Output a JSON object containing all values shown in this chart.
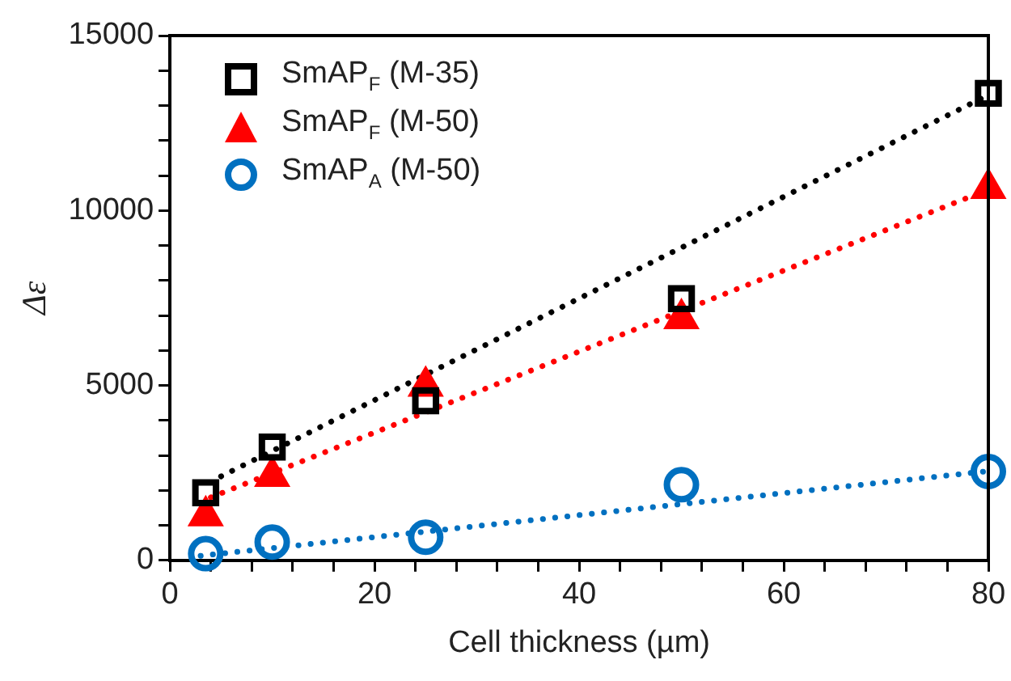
{
  "chart_data": {
    "type": "scatter",
    "xlabel": "Cell thickness (µm)",
    "ylabel": "Δε",
    "xlim": [
      0,
      80
    ],
    "xticks": [
      0,
      {
        "value": 4,
        "label": null
      },
      {
        "value": 8,
        "label": null
      },
      {
        "value": 12,
        "label": null
      },
      {
        "value": 16,
        "label": null
      },
      20,
      {
        "value": 24,
        "label": null
      },
      {
        "value": 28,
        "label": null
      },
      {
        "value": 32,
        "label": null
      },
      {
        "value": 36,
        "label": null
      },
      40,
      {
        "value": 44,
        "label": null
      },
      {
        "value": 48,
        "label": null
      },
      {
        "value": 52,
        "label": null
      },
      {
        "value": 56,
        "label": null
      },
      60,
      {
        "value": 64,
        "label": null
      },
      {
        "value": 68,
        "label": null
      },
      {
        "value": 72,
        "label": null
      },
      {
        "value": 76,
        "label": null
      },
      80
    ],
    "ylim": [
      0,
      15000
    ],
    "yticks": [
      0,
      {
        "value": 1000,
        "label": null
      },
      {
        "value": 2000,
        "label": null
      },
      {
        "value": 3000,
        "label": null
      },
      {
        "value": 4000,
        "label": null
      },
      5000,
      {
        "value": 6000,
        "label": null
      },
      {
        "value": 7000,
        "label": null
      },
      {
        "value": 8000,
        "label": null
      },
      {
        "value": 9000,
        "label": null
      },
      10000,
      {
        "value": 11000,
        "label": null
      },
      {
        "value": 12000,
        "label": null
      },
      {
        "value": 13000,
        "label": null
      },
      {
        "value": 14000,
        "label": null
      },
      15000
    ],
    "grid": false,
    "legend": "top left",
    "x": [
      3.5,
      10,
      25,
      50,
      80
    ],
    "series": [
      {
        "name": "SmAP$_{F}$ (M-35)",
        "color": "#000000",
        "marker": "square",
        "values": [
          1930,
          3240,
          4560,
          7480,
          13350
        ]
      },
      {
        "name": "SmAP$_{F}$ (M-50)",
        "color": "#ff0000",
        "marker": "triangle",
        "values": [
          1270,
          2400,
          4980,
          6910,
          10630
        ]
      },
      {
        "name": "SmAP$_{A}$ (M-50)",
        "color": "#0070c0",
        "marker": "circle",
        "values": [
          190,
          520,
          660,
          2160,
          2540
        ]
      },
      {
        "type": "line",
        "x": [
          5,
          80
        ],
        "color": "#000000",
        "line_style": "dotted",
        "marker": "none",
        "values": [
          2400,
          13300
        ]
      },
      {
        "type": "line",
        "x": [
          4,
          80
        ],
        "color": "#ff0000",
        "line_style": "dotted",
        "marker": "none",
        "values": [
          1800,
          10600
        ]
      },
      {
        "type": "line",
        "x": [
          3,
          80
        ],
        "color": "#0070c0",
        "line_style": "dotted",
        "marker": "none",
        "values": [
          130,
          2550
        ]
      }
    ]
  }
}
